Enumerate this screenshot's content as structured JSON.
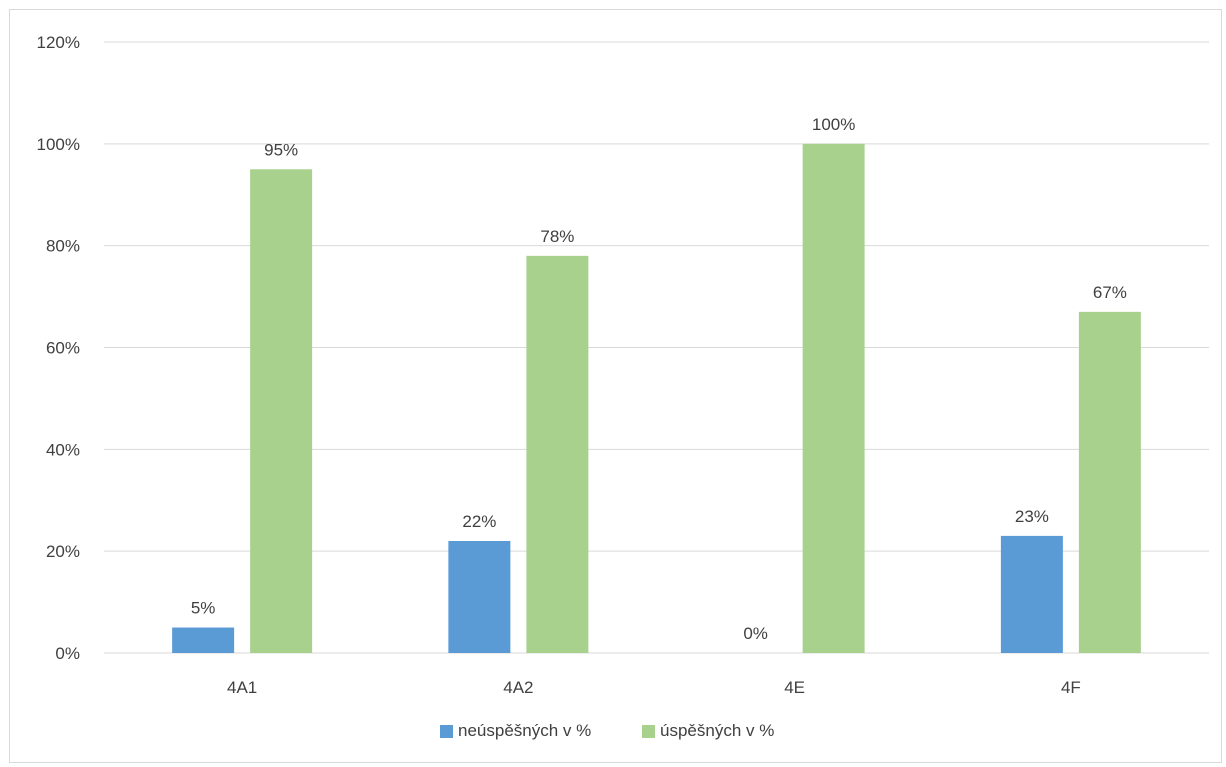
{
  "chart_data": {
    "type": "bar",
    "title": "",
    "xlabel": "",
    "ylabel": "",
    "categories": [
      "4A1",
      "4A2",
      "4E",
      "4F"
    ],
    "series": [
      {
        "name": "neúspěšných v %",
        "values": [
          5,
          22,
          0,
          23
        ],
        "labels": [
          "5%",
          "22%",
          "0%",
          "23%"
        ],
        "color": "#5b9bd5"
      },
      {
        "name": "úspěšných v %",
        "values": [
          95,
          78,
          100,
          67
        ],
        "labels": [
          "95%",
          "78%",
          "100%",
          "67%"
        ],
        "color": "#a9d18e"
      }
    ],
    "ylim": [
      0,
      120
    ],
    "yticks": [
      0,
      20,
      40,
      60,
      80,
      100,
      120
    ],
    "ytick_labels": [
      "0%",
      "20%",
      "40%",
      "60%",
      "80%",
      "100%",
      "120%"
    ],
    "grid": true,
    "legend_position": "bottom",
    "colors": {
      "gridline": "#d9d9d9",
      "text": "#404040",
      "border": "#d9d9d9"
    }
  }
}
